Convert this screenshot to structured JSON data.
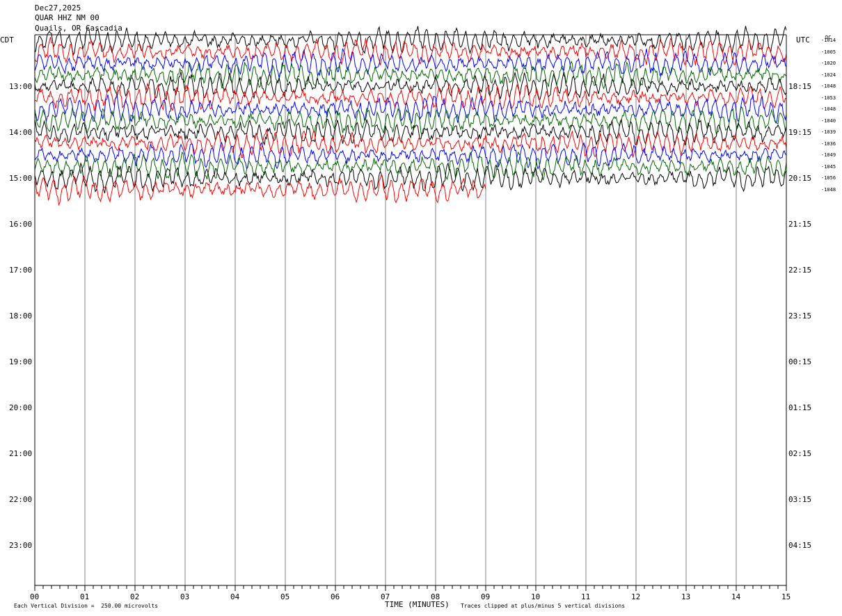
{
  "header": {
    "date": "Dec27,2025",
    "station": "QUAR HHZ NM 00",
    "location": "Quails, OR Cascadia"
  },
  "left_timezone": "CDT",
  "right_timezone": "UTC",
  "dc_header": "DC",
  "footer": {
    "scale_note": "Each Vertical Division =  250.00 microvolts",
    "clip_note": "Traces clipped at plus/minus 5 vertical divisions"
  },
  "colors": {
    "trace_cycle": [
      "#000000",
      "#ff0000",
      "#0000ff",
      "#006600"
    ],
    "grid": "#808080",
    "axis": "#000000"
  },
  "chart_data": {
    "type": "line",
    "xlabel": "TIME (MINUTES)",
    "xlim": [
      0,
      15
    ],
    "x_ticks": [
      "00",
      "01",
      "02",
      "03",
      "04",
      "05",
      "06",
      "07",
      "08",
      "09",
      "10",
      "11",
      "12",
      "13",
      "14",
      "15"
    ],
    "y_left_hour_labels": [
      "13:00",
      "14:00",
      "15:00",
      "16:00",
      "17:00",
      "18:00",
      "19:00",
      "20:00",
      "21:00",
      "22:00",
      "23:00"
    ],
    "y_right_hour_labels": [
      "18:15",
      "19:15",
      "20:15",
      "21:15",
      "22:15",
      "23:15",
      "00:15",
      "01:15",
      "02:15",
      "03:15",
      "04:15"
    ],
    "rows_per_hour": 4,
    "row_start_time_cdt": "12:15",
    "trace_count": 14,
    "last_trace_end_minute": 9,
    "dc_offsets": [
      "-1014",
      "-1005",
      "-1020",
      "-1024",
      "-1048",
      "-1053",
      "-1048",
      "-1040",
      "-1039",
      "-1036",
      "-1049",
      "-1045",
      "-1056",
      "-1048"
    ],
    "grid": true
  }
}
